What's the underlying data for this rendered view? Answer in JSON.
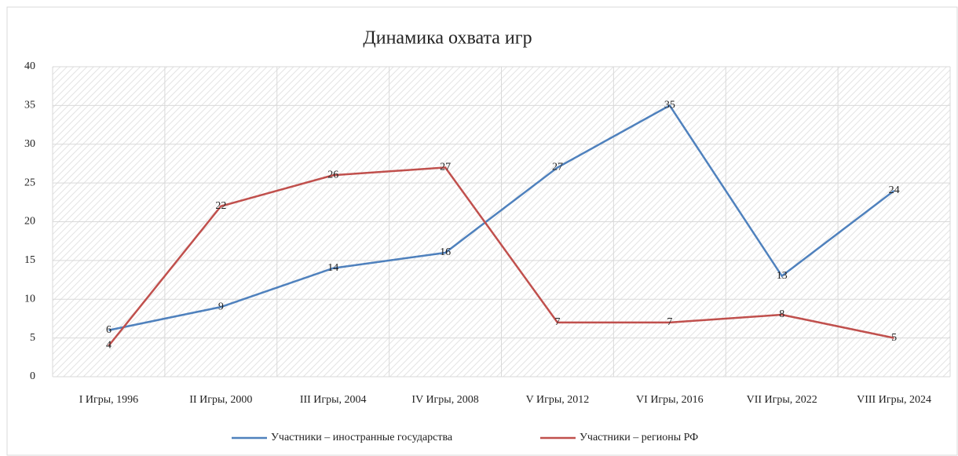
{
  "chart_data": {
    "type": "line",
    "title": "Динамика охвата игр",
    "categories": [
      "I Игры, 1996",
      "II Игры, 2000",
      "III Игры, 2004",
      "IV Игры, 2008",
      "V Игры, 2012",
      "VI Игры, 2016",
      "VII Игры, 2022",
      "VIII Игры, 2024"
    ],
    "series": [
      {
        "name": "Участники – иностранные государства",
        "color": "#4f81bd",
        "values": [
          6,
          9,
          14,
          16,
          27,
          35,
          13,
          24
        ]
      },
      {
        "name": "Участники – регионы РФ",
        "color": "#c0504d",
        "values": [
          4,
          22,
          26,
          27,
          7,
          7,
          8,
          5
        ]
      }
    ],
    "ylim": [
      0,
      40
    ],
    "yticks": [
      0,
      5,
      10,
      15,
      20,
      25,
      30,
      35,
      40
    ],
    "grid": true,
    "legend": "bottom"
  }
}
